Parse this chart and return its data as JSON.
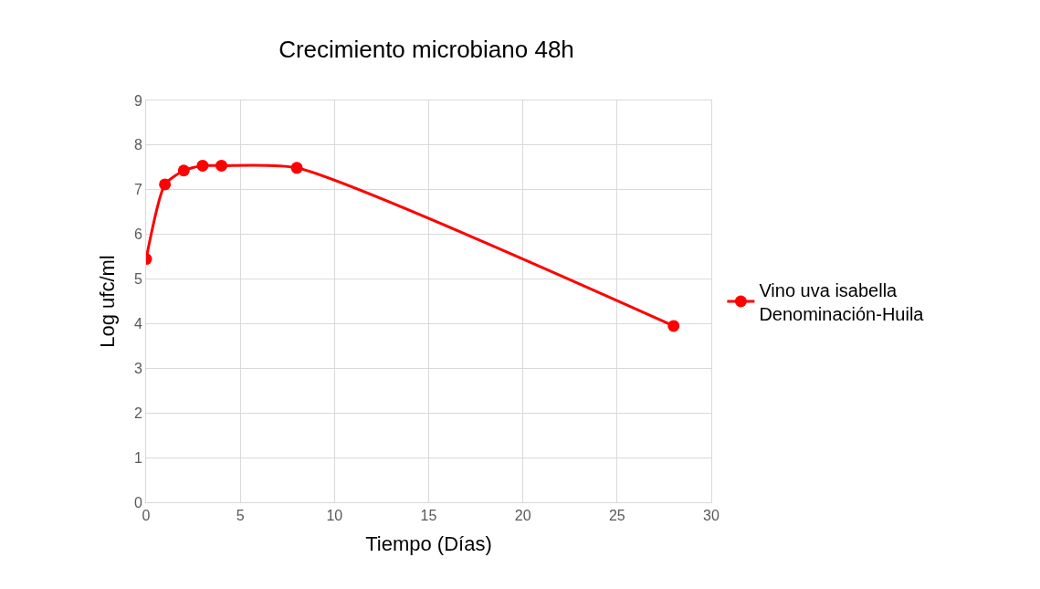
{
  "chart_data": {
    "type": "line",
    "title": "Crecimiento microbiano 48h",
    "xlabel": "Tiempo (Días)",
    "ylabel": "Log ufc/ml",
    "x": [
      0,
      1,
      2,
      3,
      4,
      8,
      28
    ],
    "series": [
      {
        "name": "Vino uva isabella\nDenominación-Huila",
        "color": "#ff0000",
        "values": [
          5.45,
          7.12,
          7.43,
          7.54,
          7.54,
          7.49,
          3.95
        ]
      }
    ],
    "xlim": [
      0,
      30
    ],
    "xticks": [
      0,
      5,
      10,
      15,
      20,
      25,
      30
    ],
    "ylim": [
      0,
      9
    ],
    "yticks": [
      0,
      1,
      2,
      3,
      4,
      5,
      6,
      7,
      8,
      9
    ],
    "grid": true,
    "legend": "right",
    "marker": "circle",
    "line_style": "solid"
  }
}
